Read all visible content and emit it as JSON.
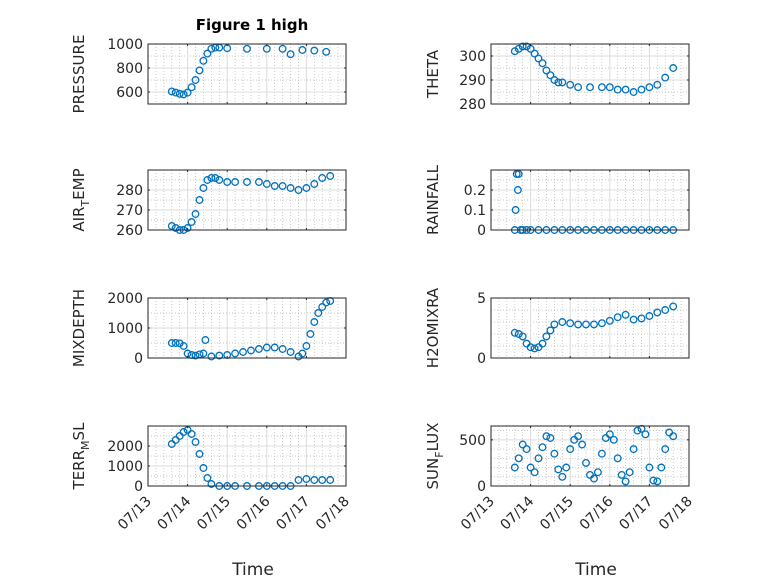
{
  "figure": {
    "title": "Figure 1 high"
  },
  "chart_data": [
    {
      "type": "scatter",
      "ylabel": "PRESSURE",
      "ylim": [
        500,
        1000
      ],
      "yticks": [
        600,
        800,
        1000
      ],
      "yminor": [
        500,
        700,
        900
      ],
      "xlim": [
        0,
        5
      ],
      "xticks": [
        "07/13",
        "07/14",
        "07/15",
        "07/16",
        "07/17",
        "07/18"
      ],
      "grid": true,
      "color": "#0072BD",
      "x": [
        0.6,
        0.7,
        0.8,
        0.9,
        1.0,
        1.1,
        1.2,
        1.3,
        1.4,
        1.5,
        1.6,
        1.7,
        1.8,
        2.0,
        2.5,
        3.0,
        3.4,
        3.6,
        3.9,
        4.2,
        4.5
      ],
      "y": [
        605,
        595,
        585,
        580,
        595,
        640,
        700,
        780,
        860,
        920,
        960,
        970,
        970,
        965,
        960,
        960,
        960,
        915,
        950,
        945,
        935
      ]
    },
    {
      "type": "scatter",
      "ylabel": "THETA",
      "ylim": [
        280,
        305
      ],
      "yticks": [
        280,
        290,
        300
      ],
      "yminor": [
        285,
        295
      ],
      "xlim": [
        0,
        5
      ],
      "xticks": [
        "07/13",
        "07/14",
        "07/15",
        "07/16",
        "07/17",
        "07/18"
      ],
      "grid": true,
      "color": "#0072BD",
      "x": [
        0.6,
        0.7,
        0.8,
        0.9,
        1.0,
        1.1,
        1.2,
        1.3,
        1.4,
        1.5,
        1.6,
        1.7,
        1.8,
        2.0,
        2.2,
        2.5,
        2.8,
        3.0,
        3.2,
        3.4,
        3.6,
        3.8,
        4.0,
        4.2,
        4.4,
        4.6
      ],
      "y": [
        302,
        303,
        304,
        304,
        303,
        301,
        299,
        297,
        294,
        292,
        290,
        289,
        289,
        288,
        287,
        287,
        287,
        287,
        286,
        286,
        285,
        286,
        287,
        288,
        291,
        295
      ]
    },
    {
      "type": "scatter",
      "ylabel": "AIR_TEMP",
      "ylim": [
        260,
        290
      ],
      "yticks": [
        260,
        270,
        280
      ],
      "yminor": [
        265,
        275,
        285
      ],
      "xlim": [
        0,
        5
      ],
      "xticks": [
        "07/13",
        "07/14",
        "07/15",
        "07/16",
        "07/17",
        "07/18"
      ],
      "grid": true,
      "color": "#0072BD",
      "x": [
        0.6,
        0.7,
        0.8,
        0.9,
        1.0,
        1.1,
        1.2,
        1.3,
        1.4,
        1.5,
        1.6,
        1.7,
        1.8,
        2.0,
        2.2,
        2.5,
        2.8,
        3.0,
        3.2,
        3.4,
        3.6,
        3.8,
        4.0,
        4.2,
        4.4,
        4.6
      ],
      "y": [
        262,
        261,
        260,
        260,
        261,
        264,
        268,
        275,
        281,
        285,
        286,
        286,
        285,
        284,
        284,
        284,
        284,
        283,
        282,
        282,
        281,
        280,
        281,
        283,
        286,
        287
      ]
    },
    {
      "type": "scatter",
      "ylabel": "RAINFALL",
      "ylim": [
        0,
        0.3
      ],
      "yticks": [
        0,
        0.1,
        0.2
      ],
      "yminor": [
        0.05,
        0.15,
        0.25
      ],
      "xlim": [
        0,
        5
      ],
      "xticks": [
        "07/13",
        "07/14",
        "07/15",
        "07/16",
        "07/17",
        "07/18"
      ],
      "grid": true,
      "color": "#0072BD",
      "x": [
        0.6,
        0.62,
        0.65,
        0.68,
        0.7,
        0.75,
        0.8,
        0.9,
        1.0,
        1.2,
        1.4,
        1.6,
        1.8,
        2.0,
        2.2,
        2.4,
        2.6,
        2.8,
        3.0,
        3.2,
        3.4,
        3.6,
        3.8,
        4.0,
        4.2,
        4.4,
        4.6
      ],
      "y": [
        0,
        0.1,
        0.28,
        0.2,
        0.28,
        0,
        0,
        0,
        0,
        0,
        0,
        0,
        0,
        0,
        0,
        0,
        0,
        0,
        0,
        0,
        0,
        0,
        0,
        0,
        0,
        0,
        0
      ]
    },
    {
      "type": "scatter",
      "ylabel": "MIXDEPTH",
      "ylim": [
        0,
        2000
      ],
      "yticks": [
        0,
        1000,
        2000
      ],
      "yminor": [
        500,
        1500
      ],
      "xlim": [
        0,
        5
      ],
      "xticks": [
        "07/13",
        "07/14",
        "07/15",
        "07/16",
        "07/17",
        "07/18"
      ],
      "grid": true,
      "color": "#0072BD",
      "x": [
        0.6,
        0.7,
        0.8,
        0.9,
        1.0,
        1.1,
        1.2,
        1.3,
        1.4,
        1.45,
        1.6,
        1.8,
        2.0,
        2.2,
        2.4,
        2.6,
        2.8,
        3.0,
        3.2,
        3.4,
        3.6,
        3.8,
        3.9,
        4.0,
        4.1,
        4.2,
        4.3,
        4.4,
        4.5,
        4.6
      ],
      "y": [
        500,
        500,
        490,
        400,
        150,
        100,
        80,
        120,
        150,
        600,
        50,
        80,
        100,
        150,
        200,
        250,
        300,
        350,
        350,
        300,
        200,
        50,
        150,
        400,
        800,
        1200,
        1500,
        1700,
        1850,
        1900
      ]
    },
    {
      "type": "scatter",
      "ylabel": "H2OMIXRA",
      "ylim": [
        0,
        5
      ],
      "yticks": [
        0,
        5
      ],
      "yminor": [
        1,
        2,
        3,
        4
      ],
      "xlim": [
        0,
        5
      ],
      "xticks": [
        "07/13",
        "07/14",
        "07/15",
        "07/16",
        "07/17",
        "07/18"
      ],
      "grid": true,
      "color": "#0072BD",
      "x": [
        0.6,
        0.7,
        0.8,
        0.9,
        1.0,
        1.1,
        1.2,
        1.3,
        1.4,
        1.5,
        1.6,
        1.8,
        2.0,
        2.2,
        2.4,
        2.6,
        2.8,
        3.0,
        3.2,
        3.4,
        3.6,
        3.8,
        4.0,
        4.2,
        4.4,
        4.6
      ],
      "y": [
        2.1,
        2.0,
        1.8,
        1.2,
        0.9,
        0.8,
        0.9,
        1.2,
        1.8,
        2.3,
        2.8,
        3.0,
        2.9,
        2.8,
        2.8,
        2.8,
        2.9,
        3.1,
        3.4,
        3.6,
        3.2,
        3.3,
        3.5,
        3.8,
        4.0,
        4.3
      ]
    },
    {
      "type": "scatter",
      "ylabel": "TERR_MSL",
      "ylim": [
        0,
        3000
      ],
      "yticks": [
        0,
        1000,
        2000
      ],
      "yminor": [
        500,
        1500,
        2500
      ],
      "xlim": [
        0,
        5
      ],
      "xticks": [
        "07/13",
        "07/14",
        "07/15",
        "07/16",
        "07/17",
        "07/18"
      ],
      "grid": true,
      "color": "#0072BD",
      "x": [
        0.6,
        0.7,
        0.8,
        0.9,
        1.0,
        1.1,
        1.2,
        1.3,
        1.4,
        1.5,
        1.6,
        1.8,
        2.0,
        2.2,
        2.5,
        2.8,
        3.0,
        3.2,
        3.4,
        3.6,
        3.8,
        4.0,
        4.2,
        4.4,
        4.6
      ],
      "y": [
        2100,
        2300,
        2500,
        2700,
        2800,
        2600,
        2200,
        1600,
        900,
        400,
        100,
        0,
        0,
        0,
        0,
        0,
        0,
        0,
        0,
        0,
        300,
        350,
        300,
        300,
        300
      ]
    },
    {
      "type": "scatter",
      "ylabel": "SUN_FLUX",
      "ylim": [
        0,
        650
      ],
      "yticks": [
        0,
        500
      ],
      "yminor": [
        100,
        200,
        300,
        400,
        600
      ],
      "xlim": [
        0,
        5
      ],
      "xticks": [
        "07/13",
        "07/14",
        "07/15",
        "07/16",
        "07/17",
        "07/18"
      ],
      "grid": true,
      "color": "#0072BD",
      "x": [
        0.6,
        0.7,
        0.8,
        0.9,
        1.0,
        1.1,
        1.2,
        1.3,
        1.4,
        1.5,
        1.6,
        1.7,
        1.8,
        1.9,
        2.0,
        2.1,
        2.2,
        2.3,
        2.4,
        2.5,
        2.6,
        2.7,
        2.8,
        2.9,
        3.0,
        3.1,
        3.2,
        3.3,
        3.4,
        3.5,
        3.6,
        3.7,
        3.8,
        3.9,
        4.0,
        4.1,
        4.2,
        4.3,
        4.4,
        4.5,
        4.6
      ],
      "y": [
        200,
        300,
        450,
        400,
        200,
        150,
        300,
        420,
        540,
        520,
        350,
        180,
        100,
        200,
        400,
        500,
        540,
        450,
        250,
        120,
        80,
        150,
        350,
        520,
        560,
        500,
        300,
        120,
        50,
        150,
        400,
        600,
        620,
        560,
        200,
        60,
        50,
        200,
        400,
        580,
        540
      ]
    }
  ],
  "xlabel": "Time"
}
